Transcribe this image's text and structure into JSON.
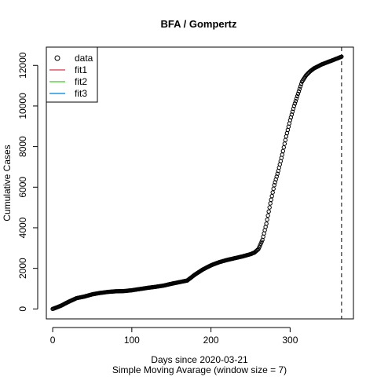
{
  "chart_data": {
    "type": "scatter",
    "title": "BFA / Gompertz",
    "xlabel": "Days since 2020-03-21",
    "subtitle": "Simple Moving Avarage (window size = 7)",
    "ylabel": "Cumulative Cases",
    "xlim": [
      -8,
      380
    ],
    "ylim": [
      -490,
      12900
    ],
    "x_ticks": [
      0,
      100,
      200,
      300
    ],
    "y_ticks": [
      0,
      2000,
      4000,
      6000,
      8000,
      10000,
      12000
    ],
    "vline_x": 365,
    "grid": false,
    "legend": {
      "position": "top-left",
      "entries": [
        {
          "label": "data",
          "symbol": "circle",
          "color": "#000000"
        },
        {
          "label": "fit1",
          "symbol": "line",
          "color": "#DF536B"
        },
        {
          "label": "fit2",
          "symbol": "line",
          "color": "#61D04F"
        },
        {
          "label": "fit3",
          "symbol": "line",
          "color": "#2297E6"
        }
      ]
    },
    "series": [
      {
        "name": "data",
        "points": [
          [
            0,
            0
          ],
          [
            10,
            150
          ],
          [
            20,
            350
          ],
          [
            30,
            530
          ],
          [
            40,
            610
          ],
          [
            50,
            720
          ],
          [
            60,
            790
          ],
          [
            70,
            840
          ],
          [
            80,
            870
          ],
          [
            90,
            880
          ],
          [
            100,
            920
          ],
          [
            110,
            980
          ],
          [
            120,
            1040
          ],
          [
            130,
            1090
          ],
          [
            140,
            1150
          ],
          [
            150,
            1240
          ],
          [
            160,
            1320
          ],
          [
            170,
            1400
          ],
          [
            175,
            1550
          ],
          [
            180,
            1700
          ],
          [
            190,
            1950
          ],
          [
            200,
            2150
          ],
          [
            210,
            2300
          ],
          [
            220,
            2410
          ],
          [
            230,
            2500
          ],
          [
            240,
            2590
          ],
          [
            250,
            2700
          ],
          [
            255,
            2780
          ],
          [
            260,
            2950
          ],
          [
            265,
            3400
          ],
          [
            270,
            4200
          ],
          [
            275,
            5200
          ],
          [
            280,
            6100
          ],
          [
            285,
            6800
          ],
          [
            290,
            7600
          ],
          [
            295,
            8500
          ],
          [
            300,
            9300
          ],
          [
            305,
            10000
          ],
          [
            310,
            10600
          ],
          [
            315,
            11200
          ],
          [
            320,
            11500
          ],
          [
            325,
            11700
          ],
          [
            330,
            11850
          ],
          [
            340,
            12050
          ],
          [
            350,
            12200
          ],
          [
            360,
            12350
          ],
          [
            365,
            12430
          ]
        ]
      }
    ]
  }
}
